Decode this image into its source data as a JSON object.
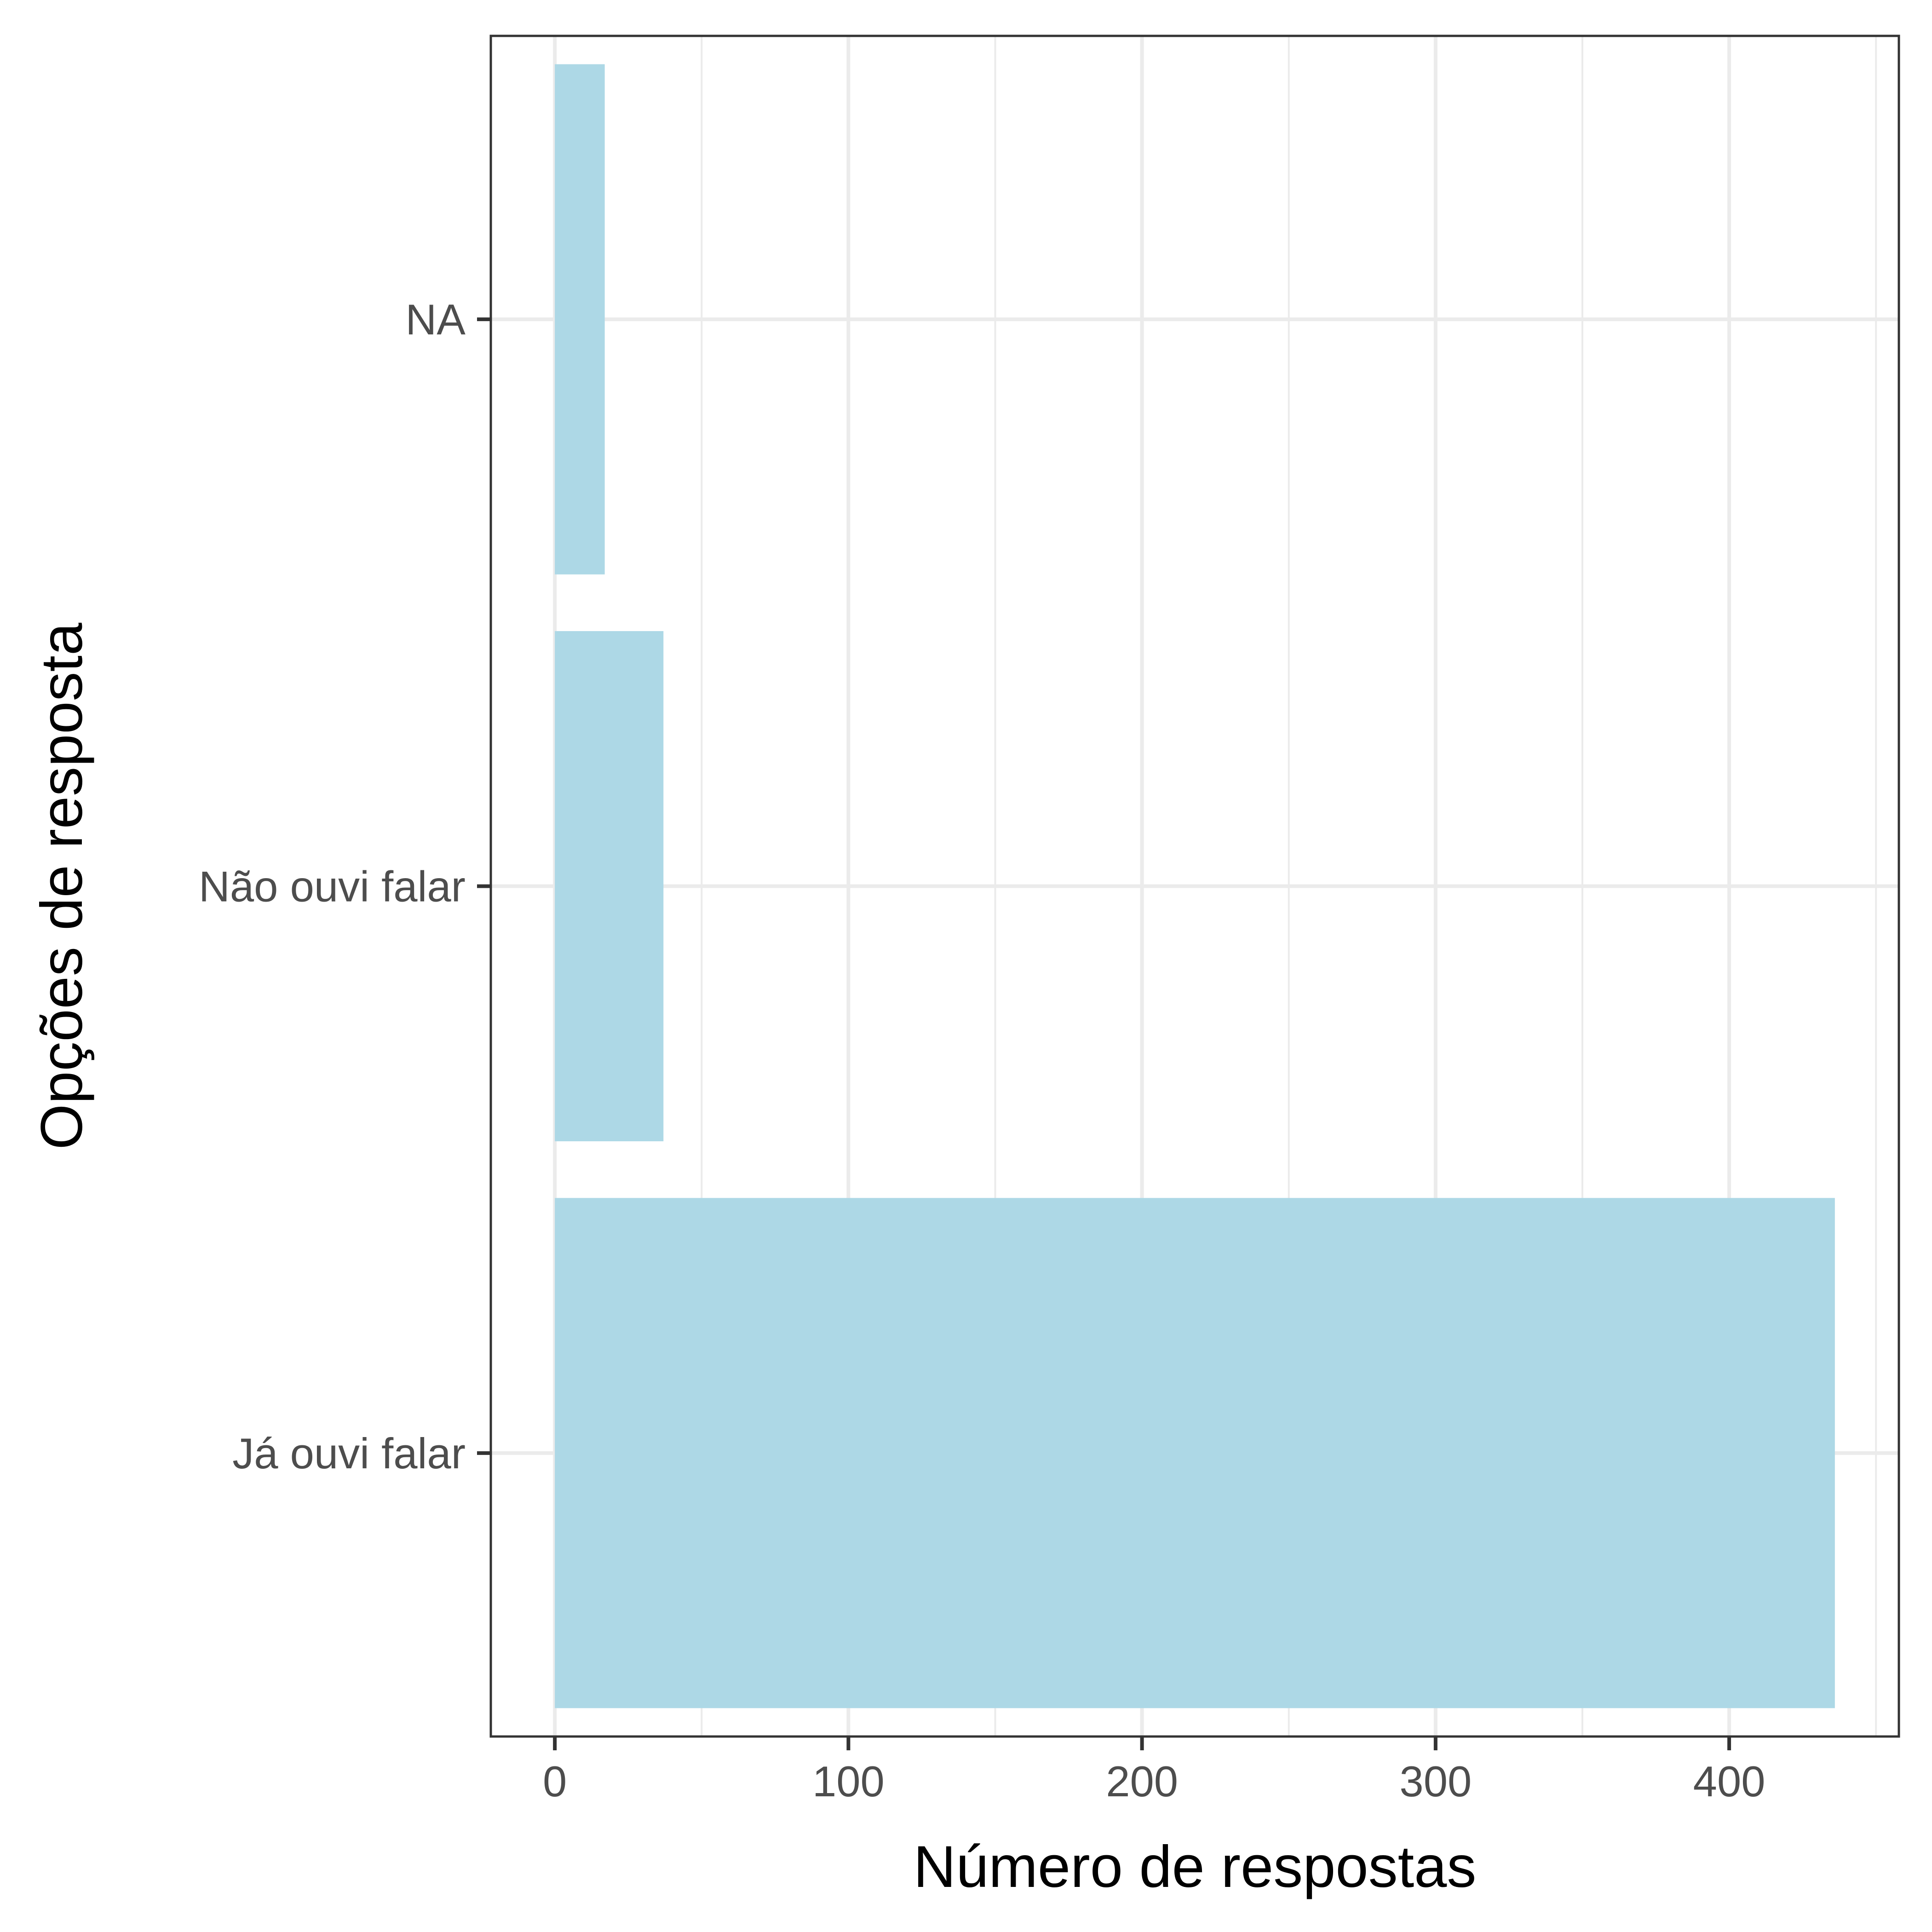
{
  "chart_data": {
    "type": "bar",
    "orientation": "horizontal",
    "categories": [
      "Já ouvi falar",
      "Não ouvi falar",
      "NA"
    ],
    "values": [
      436,
      37,
      17
    ],
    "xlabel": "Número de respostas",
    "ylabel": "Opções de resposta",
    "xlim": [
      -21.8,
      457.8
    ],
    "xticks": [
      0,
      100,
      200,
      300,
      400
    ],
    "xtick_labels": [
      "0",
      "100",
      "200",
      "300",
      "400"
    ],
    "grid": true,
    "legend": "none",
    "colors": {
      "bar": "#add8e6",
      "grid": "#ebebeb",
      "border": "#333333",
      "tick_label": "#4d4d4d",
      "axis_title": "#000000"
    }
  }
}
